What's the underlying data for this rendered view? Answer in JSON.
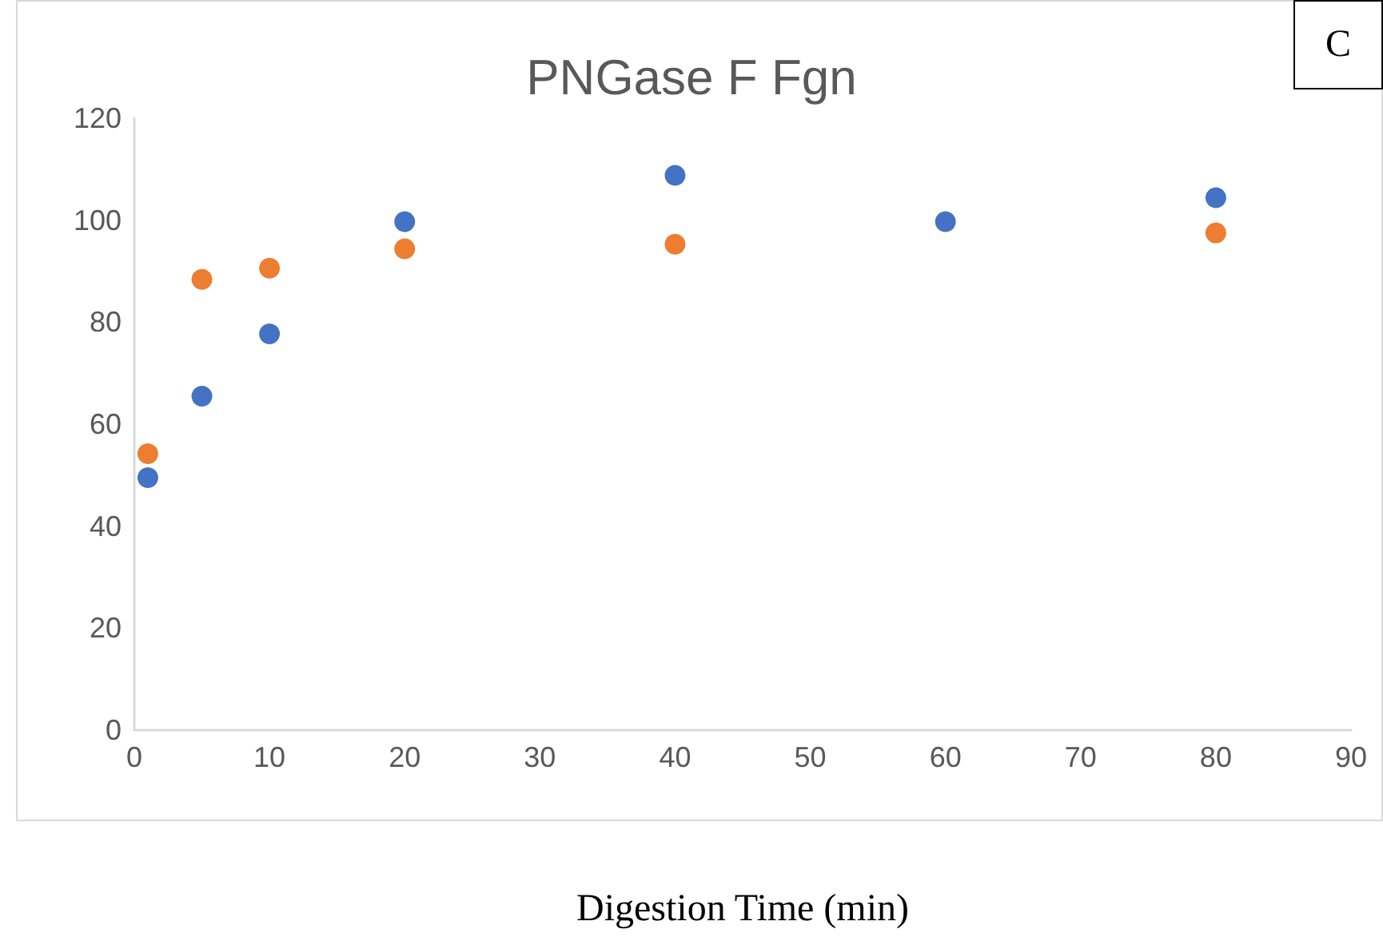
{
  "chart_data": {
    "type": "scatter",
    "title": "PNGase F Fgn",
    "xlabel": "Digestion Time (min)",
    "annotations": [
      "C"
    ],
    "xlim": [
      0,
      90
    ],
    "xticks": [
      0,
      10,
      20,
      30,
      40,
      50,
      60,
      70,
      80,
      90
    ],
    "ylim": [
      0,
      120
    ],
    "yticks": [
      0,
      20,
      40,
      60,
      80,
      100,
      120
    ],
    "grid": false,
    "marker": "circle",
    "series": [
      {
        "color": "#4472c4",
        "x": [
          1,
          5,
          10,
          20,
          40,
          60,
          80
        ],
        "values": [
          49.5,
          65.5,
          77.7,
          99.7,
          108.8,
          99.7,
          104.4
        ]
      },
      {
        "color": "#ed7d31",
        "x": [
          1,
          5,
          10,
          20,
          40,
          60,
          80
        ],
        "values": [
          54.2,
          88.4,
          90.6,
          94.4,
          95.3,
          null,
          97.5
        ]
      }
    ]
  }
}
